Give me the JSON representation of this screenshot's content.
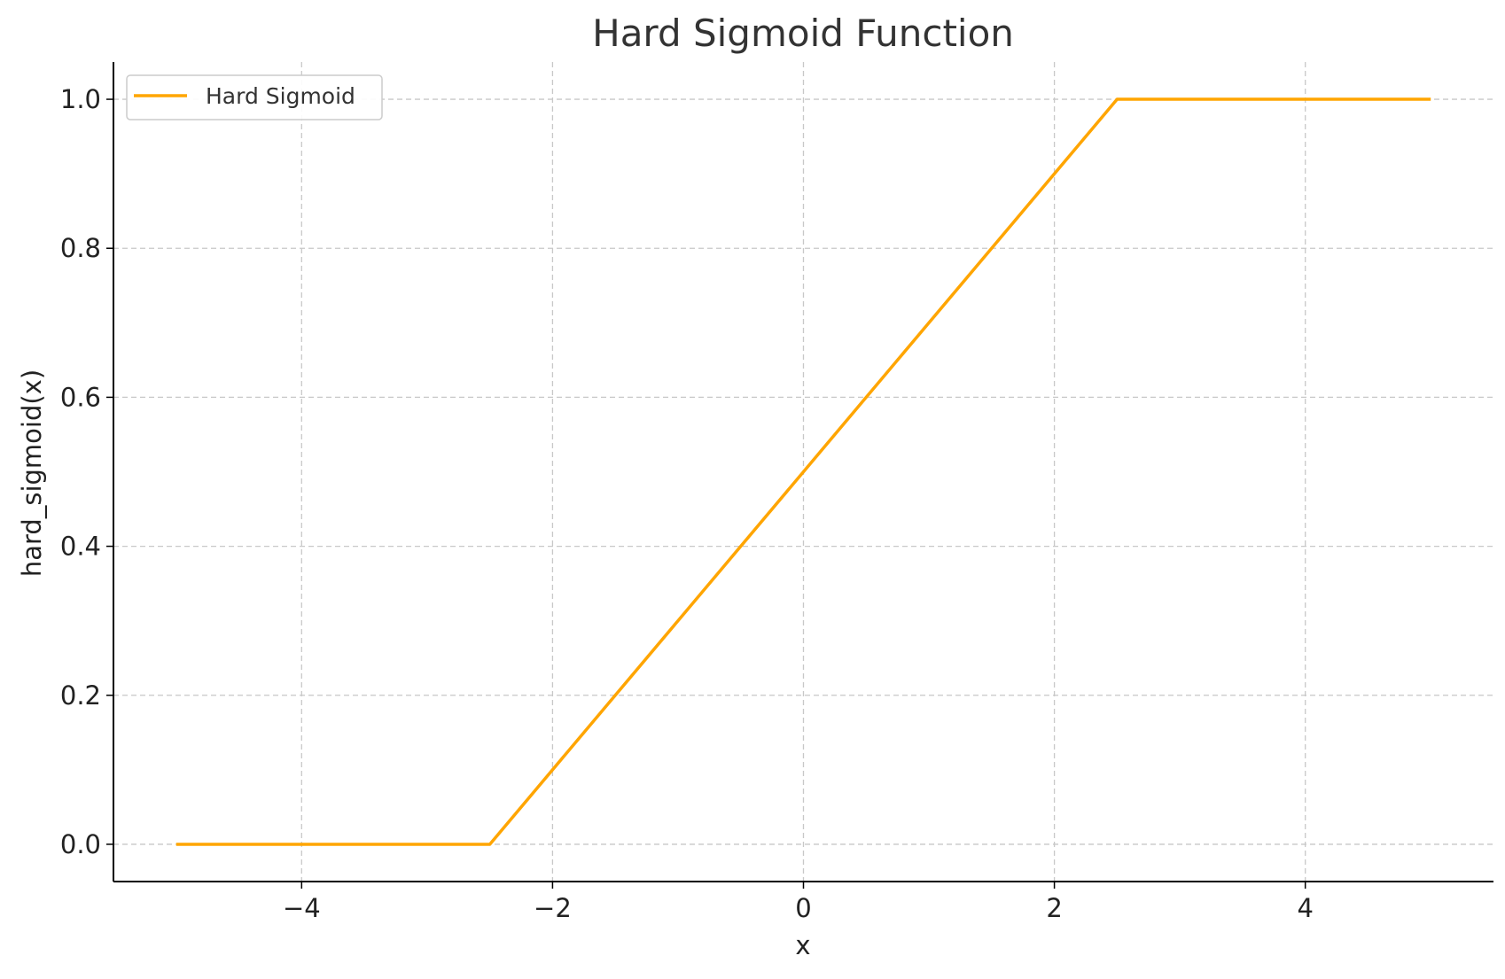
{
  "chart_data": {
    "type": "line",
    "title": "Hard Sigmoid Function",
    "xlabel": "x",
    "ylabel": "hard_sigmoid(x)",
    "xlim": [
      -5.5,
      5.5
    ],
    "ylim": [
      -0.05,
      1.05
    ],
    "x_ticks": [
      -4,
      -2,
      0,
      2,
      4
    ],
    "x_tick_labels": [
      "−4",
      "−2",
      "0",
      "2",
      "4"
    ],
    "y_ticks": [
      0.0,
      0.2,
      0.4,
      0.6,
      0.8,
      1.0
    ],
    "y_tick_labels": [
      "0.0",
      "0.2",
      "0.4",
      "0.6",
      "0.8",
      "1.0"
    ],
    "grid": true,
    "legend_position": "top-left",
    "series": [
      {
        "name": "Hard Sigmoid",
        "color": "#FFA500",
        "x": [
          -5,
          -2.5,
          2.5,
          5
        ],
        "y": [
          0,
          0,
          1,
          1
        ]
      }
    ]
  }
}
